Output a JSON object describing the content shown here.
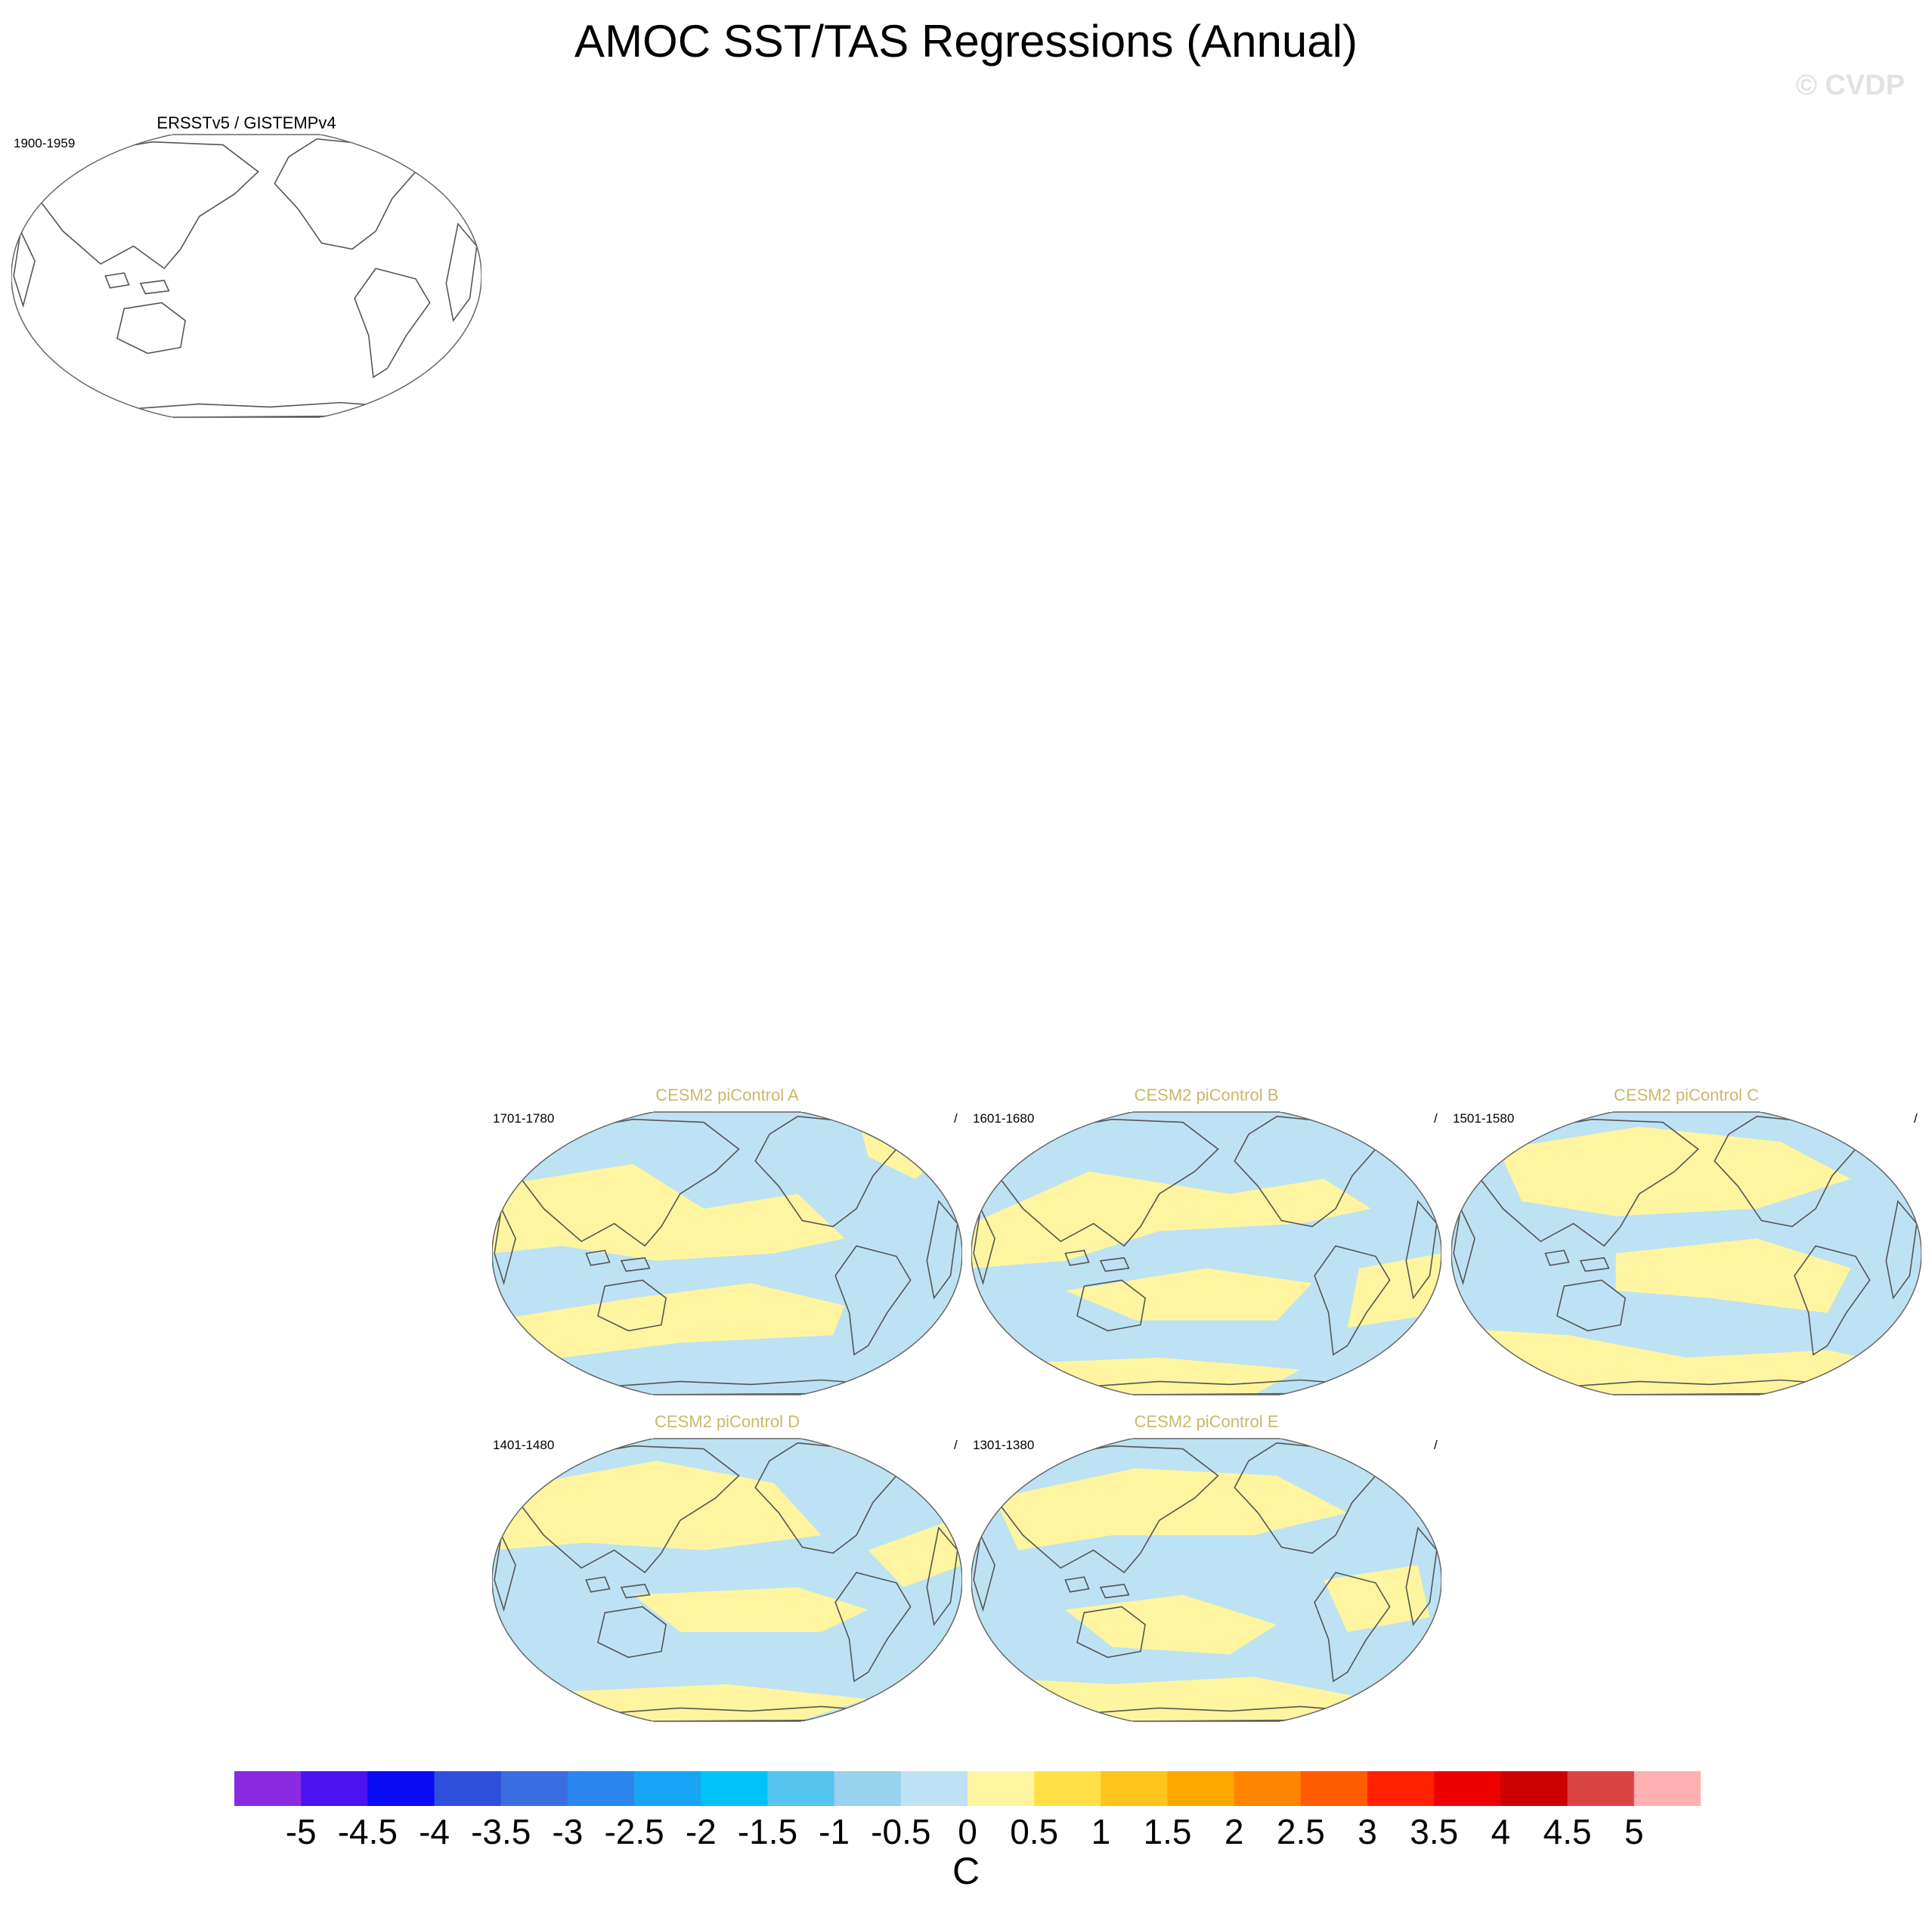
{
  "title": "AMOC SST/TAS Regressions (Annual)",
  "watermark": "© CVDP",
  "colors": {
    "model_title": "#c8b96a",
    "positive_fill": "#fff5a0",
    "negative_fill": "#bde2f3",
    "coastline": "#555555"
  },
  "panels": [
    {
      "id": "obs",
      "title": "ERSSTv5 / GISTEMPv4",
      "period": "1900-1959",
      "slash": "",
      "filled": false
    },
    {
      "id": "A",
      "title": "CESM2 piControl A",
      "period": "1701-1780",
      "slash": "/",
      "filled": true
    },
    {
      "id": "B",
      "title": "CESM2 piControl B",
      "period": "1601-1680",
      "slash": "/",
      "filled": true
    },
    {
      "id": "C",
      "title": "CESM2 piControl C",
      "period": "1501-1580",
      "slash": "/",
      "filled": true
    },
    {
      "id": "D",
      "title": "CESM2 piControl D",
      "period": "1401-1480",
      "slash": "/",
      "filled": true
    },
    {
      "id": "E",
      "title": "CESM2 piControl E",
      "period": "1301-1380",
      "slash": "/",
      "filled": true
    }
  ],
  "colorbar": {
    "units": "C",
    "labels": [
      "-5",
      "-4.5",
      "-4",
      "-3.5",
      "-3",
      "-2.5",
      "-2",
      "-1.5",
      "-1",
      "-0.5",
      "0",
      "0.5",
      "1",
      "1.5",
      "2",
      "2.5",
      "3",
      "3.5",
      "4",
      "4.5",
      "5"
    ],
    "colors": [
      "#8a2be2",
      "#4a13f0",
      "#0a0af5",
      "#2f4fdd",
      "#3a6ee0",
      "#2b86f0",
      "#18a4f5",
      "#00c3f8",
      "#55c4ee",
      "#98d2ec",
      "#bde2f3",
      "#fff5a0",
      "#ffe147",
      "#ffc41c",
      "#ffa800",
      "#ff8400",
      "#ff5b00",
      "#ff2200",
      "#ee0000",
      "#cc0000",
      "#dc4444",
      "#ffb0b0"
    ]
  }
}
